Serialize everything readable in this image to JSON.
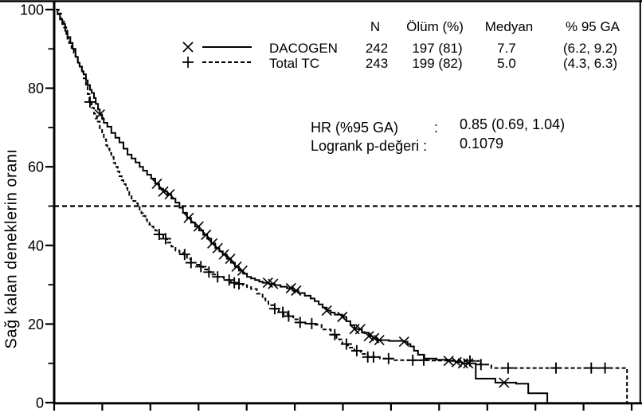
{
  "chart_data": {
    "type": "line",
    "subtype": "kaplan-meier-step",
    "title": "",
    "xlabel": "",
    "ylabel": "Sağ kalan deneklerin oranı",
    "ylim": [
      0,
      100
    ],
    "yticks_major": [
      100,
      80,
      60,
      40,
      20,
      0
    ],
    "yticks_minor": [
      90,
      70,
      50,
      30,
      10
    ],
    "x_tick_count": 13,
    "reference_line_y": 50,
    "grid": "off",
    "legend_position": "top-center",
    "colors": {
      "foreground": "#000000",
      "background": "#ffffff"
    },
    "series": [
      {
        "name": "DACOGEN",
        "marker": "x",
        "line_style": "solid",
        "points": [
          [
            0.003,
            100
          ],
          [
            0.006,
            98.8
          ],
          [
            0.01,
            97.5
          ],
          [
            0.014,
            96.3
          ],
          [
            0.019,
            94.6
          ],
          [
            0.023,
            93.0
          ],
          [
            0.028,
            91.5
          ],
          [
            0.032,
            90.0
          ],
          [
            0.037,
            88.0
          ],
          [
            0.041,
            86.5
          ],
          [
            0.044,
            85.5
          ],
          [
            0.048,
            84.3
          ],
          [
            0.051,
            83.5
          ],
          [
            0.055,
            82.0
          ],
          [
            0.058,
            80.8
          ],
          [
            0.062,
            79.6
          ],
          [
            0.065,
            78.8
          ],
          [
            0.069,
            77.5
          ],
          [
            0.072,
            76.0
          ],
          [
            0.076,
            74.6
          ],
          [
            0.079,
            73.3
          ],
          [
            0.083,
            72.2
          ],
          [
            0.086,
            71.2
          ],
          [
            0.092,
            70.2
          ],
          [
            0.099,
            68.6
          ],
          [
            0.106,
            67.4
          ],
          [
            0.113,
            66.2
          ],
          [
            0.12,
            64.6
          ],
          [
            0.127,
            63.1
          ],
          [
            0.134,
            62.1
          ],
          [
            0.141,
            61.1
          ],
          [
            0.148,
            60.0
          ],
          [
            0.154,
            59.0
          ],
          [
            0.161,
            58.0
          ],
          [
            0.168,
            57.0
          ],
          [
            0.175,
            55.7
          ],
          [
            0.182,
            54.4
          ],
          [
            0.189,
            53.7
          ],
          [
            0.196,
            53.0
          ],
          [
            0.203,
            51.9
          ],
          [
            0.21,
            50.9
          ],
          [
            0.217,
            49.6
          ],
          [
            0.223,
            48.3
          ],
          [
            0.23,
            47.0
          ],
          [
            0.237,
            45.8
          ],
          [
            0.244,
            44.8
          ],
          [
            0.251,
            43.8
          ],
          [
            0.258,
            42.7
          ],
          [
            0.265,
            41.7
          ],
          [
            0.272,
            40.5
          ],
          [
            0.279,
            39.3
          ],
          [
            0.286,
            38.5
          ],
          [
            0.292,
            37.7
          ],
          [
            0.299,
            36.6
          ],
          [
            0.306,
            35.6
          ],
          [
            0.313,
            34.6
          ],
          [
            0.32,
            33.6
          ],
          [
            0.327,
            32.8
          ],
          [
            0.334,
            32.0
          ],
          [
            0.341,
            31.6
          ],
          [
            0.348,
            31.2
          ],
          [
            0.355,
            30.8
          ],
          [
            0.361,
            30.5
          ],
          [
            0.372,
            30.2
          ],
          [
            0.382,
            29.9
          ],
          [
            0.392,
            29.5
          ],
          [
            0.403,
            29.1
          ],
          [
            0.413,
            28.5
          ],
          [
            0.423,
            27.9
          ],
          [
            0.434,
            27.2
          ],
          [
            0.444,
            26.5
          ],
          [
            0.451,
            25.8
          ],
          [
            0.458,
            25.0
          ],
          [
            0.465,
            24.2
          ],
          [
            0.472,
            23.4
          ],
          [
            0.479,
            22.9
          ],
          [
            0.486,
            22.4
          ],
          [
            0.499,
            21.8
          ],
          [
            0.506,
            20.7
          ],
          [
            0.513,
            19.7
          ],
          [
            0.52,
            18.7
          ],
          [
            0.533,
            17.8
          ],
          [
            0.545,
            16.9
          ],
          [
            0.552,
            16.4
          ],
          [
            0.559,
            15.9
          ],
          [
            0.58,
            15.7
          ],
          [
            0.606,
            15.5
          ],
          [
            0.612,
            14.9
          ],
          [
            0.617,
            14.3
          ],
          [
            0.623,
            13.2
          ],
          [
            0.63,
            12.2
          ],
          [
            0.641,
            11.2
          ],
          [
            0.662,
            10.9
          ],
          [
            0.683,
            10.6
          ],
          [
            0.695,
            10.3
          ],
          [
            0.706,
            10.0
          ],
          [
            0.73,
            9.6
          ],
          [
            0.73,
            6.1
          ],
          [
            0.764,
            5.9
          ],
          [
            0.764,
            5.1
          ],
          [
            0.8,
            4.8
          ],
          [
            0.821,
            4.5
          ],
          [
            0.821,
            2.4
          ],
          [
            0.854,
            2.4
          ],
          [
            0.854,
            0.0
          ]
        ],
        "marker_x": [
          0.079,
          0.178,
          0.189,
          0.2,
          0.233,
          0.25,
          0.263,
          0.274,
          0.283,
          0.294,
          0.305,
          0.316,
          0.326,
          0.37,
          0.379,
          0.41,
          0.419,
          0.472,
          0.499,
          0.52,
          0.53,
          0.545,
          0.554,
          0.563,
          0.606,
          0.683,
          0.697,
          0.708,
          0.717,
          0.779
        ]
      },
      {
        "name": "Total TC",
        "marker": "+",
        "line_style": "dashed",
        "points": [
          [
            0.003,
            100
          ],
          [
            0.008,
            99.0
          ],
          [
            0.012,
            97.5
          ],
          [
            0.017,
            95.5
          ],
          [
            0.021,
            93.8
          ],
          [
            0.023,
            92.6
          ],
          [
            0.026,
            91.5
          ],
          [
            0.03,
            90.2
          ],
          [
            0.034,
            89.0
          ],
          [
            0.037,
            88.0
          ],
          [
            0.041,
            86.8
          ],
          [
            0.044,
            85.5
          ],
          [
            0.048,
            84.0
          ],
          [
            0.051,
            82.5
          ],
          [
            0.055,
            80.4
          ],
          [
            0.058,
            78.5
          ],
          [
            0.061,
            76.5
          ],
          [
            0.065,
            75.0
          ],
          [
            0.069,
            73.5
          ],
          [
            0.074,
            71.5
          ],
          [
            0.079,
            69.8
          ],
          [
            0.083,
            68.5
          ],
          [
            0.086,
            67.0
          ],
          [
            0.09,
            65.5
          ],
          [
            0.092,
            64.6
          ],
          [
            0.096,
            63.5
          ],
          [
            0.099,
            62.5
          ],
          [
            0.103,
            61.0
          ],
          [
            0.106,
            60.0
          ],
          [
            0.11,
            58.8
          ],
          [
            0.113,
            57.6
          ],
          [
            0.117,
            56.6
          ],
          [
            0.12,
            55.6
          ],
          [
            0.124,
            54.6
          ],
          [
            0.127,
            53.6
          ],
          [
            0.13,
            52.8
          ],
          [
            0.134,
            51.9
          ],
          [
            0.137,
            51.3
          ],
          [
            0.141,
            50.7
          ],
          [
            0.145,
            49.8
          ],
          [
            0.148,
            48.9
          ],
          [
            0.151,
            48.2
          ],
          [
            0.154,
            47.5
          ],
          [
            0.158,
            46.6
          ],
          [
            0.161,
            45.8
          ],
          [
            0.165,
            45.3
          ],
          [
            0.168,
            44.8
          ],
          [
            0.172,
            44.3
          ],
          [
            0.175,
            43.8
          ],
          [
            0.178,
            43.3
          ],
          [
            0.182,
            42.8
          ],
          [
            0.189,
            41.7
          ],
          [
            0.196,
            40.7
          ],
          [
            0.203,
            39.7
          ],
          [
            0.21,
            38.7
          ],
          [
            0.217,
            38.2
          ],
          [
            0.223,
            37.7
          ],
          [
            0.23,
            36.6
          ],
          [
            0.237,
            35.6
          ],
          [
            0.244,
            35.1
          ],
          [
            0.251,
            34.6
          ],
          [
            0.258,
            33.9
          ],
          [
            0.265,
            33.2
          ],
          [
            0.274,
            32.6
          ],
          [
            0.283,
            32.0
          ],
          [
            0.294,
            31.2
          ],
          [
            0.306,
            30.5
          ],
          [
            0.316,
            30.2
          ],
          [
            0.327,
            29.9
          ],
          [
            0.334,
            29.4
          ],
          [
            0.341,
            28.9
          ],
          [
            0.351,
            27.7
          ],
          [
            0.361,
            26.5
          ],
          [
            0.366,
            25.7
          ],
          [
            0.371,
            24.8
          ],
          [
            0.38,
            23.9
          ],
          [
            0.389,
            23.0
          ],
          [
            0.397,
            22.5
          ],
          [
            0.406,
            22.0
          ],
          [
            0.414,
            21.2
          ],
          [
            0.423,
            20.4
          ],
          [
            0.435,
            20.1
          ],
          [
            0.448,
            19.8
          ],
          [
            0.463,
            18.6
          ],
          [
            0.479,
            17.3
          ],
          [
            0.489,
            16.1
          ],
          [
            0.499,
            14.9
          ],
          [
            0.509,
            14.0
          ],
          [
            0.52,
            13.2
          ],
          [
            0.531,
            12.4
          ],
          [
            0.543,
            11.6
          ],
          [
            0.564,
            11.2
          ],
          [
            0.586,
            10.8
          ],
          [
            0.653,
            10.7
          ],
          [
            0.72,
            10.6
          ],
          [
            0.738,
            9.7
          ],
          [
            0.757,
            8.8
          ],
          [
            0.992,
            8.8
          ],
          [
            0.992,
            0.0
          ]
        ],
        "marker_x": [
          0.062,
          0.182,
          0.193,
          0.226,
          0.237,
          0.254,
          0.268,
          0.283,
          0.303,
          0.312,
          0.32,
          0.382,
          0.396,
          0.406,
          0.426,
          0.446,
          0.486,
          0.506,
          0.524,
          0.543,
          0.553,
          0.579,
          0.621,
          0.64,
          0.72,
          0.739,
          0.786,
          0.869,
          0.93,
          0.954
        ]
      }
    ],
    "summary_table": {
      "headers": [
        "N",
        "Ölüm (%)",
        "Medyan",
        "% 95 GA"
      ],
      "rows": [
        {
          "n": "242",
          "death": "197 (81)",
          "median": "7.7",
          "ci": "(6.2, 9.2)"
        },
        {
          "n": "243",
          "death": "199 (82)",
          "median": "5.0",
          "ci": "(4.3, 6.3)"
        }
      ]
    },
    "annotations": {
      "hr_label": "HR (%95 GA)",
      "hr_sep": ":",
      "hr_value": "0.85 (0.69, 1.04)",
      "logrank_label": "Logrank p-değeri :",
      "logrank_value": "0.1079"
    }
  }
}
